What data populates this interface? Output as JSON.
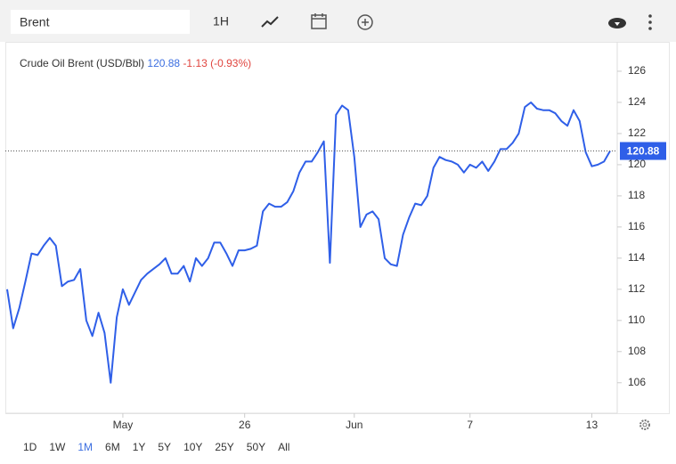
{
  "toolbar": {
    "search": "Brent",
    "interval": "1H"
  },
  "chart_data": {
    "type": "line",
    "title": "Crude Oil Brent (USD/Bbl)",
    "last": 120.88,
    "change": "-1.13 (-0.93%)",
    "categories": [
      null,
      null,
      null,
      null,
      null,
      null,
      null,
      null,
      null,
      null,
      null,
      null,
      null,
      null,
      null,
      null,
      null,
      null,
      null,
      "May",
      null,
      null,
      null,
      null,
      null,
      null,
      null,
      null,
      null,
      null,
      null,
      null,
      null,
      null,
      null,
      null,
      null,
      null,
      null,
      "26",
      null,
      null,
      null,
      null,
      null,
      null,
      null,
      null,
      null,
      null,
      null,
      null,
      null,
      null,
      null,
      null,
      null,
      "Jun",
      null,
      null,
      null,
      null,
      null,
      null,
      null,
      null,
      null,
      null,
      null,
      null,
      null,
      null,
      null,
      null,
      null,
      null,
      "7",
      null,
      null,
      null,
      null,
      null,
      null,
      null,
      null,
      null,
      null,
      null,
      null,
      null,
      null,
      null,
      null,
      null,
      null,
      null,
      "13",
      null,
      null,
      null
    ],
    "series": [
      {
        "name": "Crude Oil Brent",
        "color": "#2f5fe8",
        "values": [
          112,
          109.5,
          110.8,
          112.5,
          114.3,
          114.2,
          114.8,
          115.3,
          114.8,
          112.2,
          112.5,
          112.6,
          113.3,
          110,
          109,
          110.5,
          109.2,
          106,
          110.2,
          112,
          111,
          111.8,
          112.6,
          113,
          113.3,
          113.6,
          114,
          113,
          113,
          113.5,
          112.5,
          114,
          113.5,
          114,
          115,
          115,
          114.3,
          113.5,
          114.5,
          114.5,
          114.6,
          114.8,
          117,
          117.5,
          117.3,
          117.3,
          117.6,
          118.3,
          119.5,
          120.2,
          120.2,
          120.8,
          121.5,
          113.7,
          123.2,
          123.8,
          123.5,
          120.5,
          116,
          116.8,
          117,
          116.5,
          114,
          113.6,
          113.5,
          115.5,
          116.6,
          117.5,
          117.4,
          118,
          119.8,
          120.5,
          120.3,
          120.2,
          120,
          119.5,
          120,
          119.8,
          120.2,
          119.6,
          120.2,
          121,
          121,
          121.4,
          122,
          123.7,
          124,
          123.6,
          123.5,
          123.5,
          123.3,
          122.8,
          122.5,
          123.5,
          122.8,
          120.8,
          119.9,
          120,
          120.2,
          120.88
        ]
      }
    ],
    "ylim": [
      104.1,
      128
    ],
    "yticks": [
      106,
      108,
      110,
      112,
      114,
      116,
      118,
      120,
      122,
      124,
      126
    ],
    "grid": false
  },
  "ranges": [
    {
      "label": "1D",
      "active": false
    },
    {
      "label": "1W",
      "active": false
    },
    {
      "label": "1M",
      "active": true
    },
    {
      "label": "6M",
      "active": false
    },
    {
      "label": "1Y",
      "active": false
    },
    {
      "label": "5Y",
      "active": false
    },
    {
      "label": "10Y",
      "active": false
    },
    {
      "label": "25Y",
      "active": false
    },
    {
      "label": "50Y",
      "active": false
    },
    {
      "label": "All",
      "active": false
    }
  ]
}
